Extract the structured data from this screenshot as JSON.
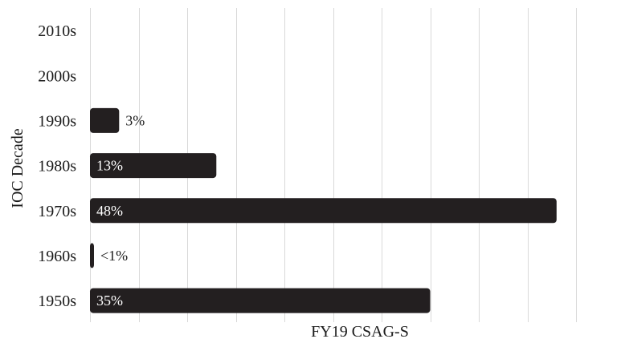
{
  "chart_data": {
    "type": "bar",
    "orientation": "horizontal",
    "title": "",
    "xlabel": "FY19 CSAG-S",
    "ylabel": "IOC Decade",
    "categories": [
      "2010s",
      "2000s",
      "1990s",
      "1980s",
      "1970s",
      "1960s",
      "1950s"
    ],
    "values": [
      0,
      0,
      3,
      13,
      48,
      0.4,
      35
    ],
    "data_labels": [
      "",
      "",
      "3%",
      "13%",
      "48%",
      "<1%",
      "35%"
    ],
    "xlim": [
      0,
      50
    ],
    "grid": true,
    "bar_color": "#231f20",
    "label_color_inside": "#ffffff",
    "label_color_outside": "#1a1a1a",
    "legend": "none"
  }
}
